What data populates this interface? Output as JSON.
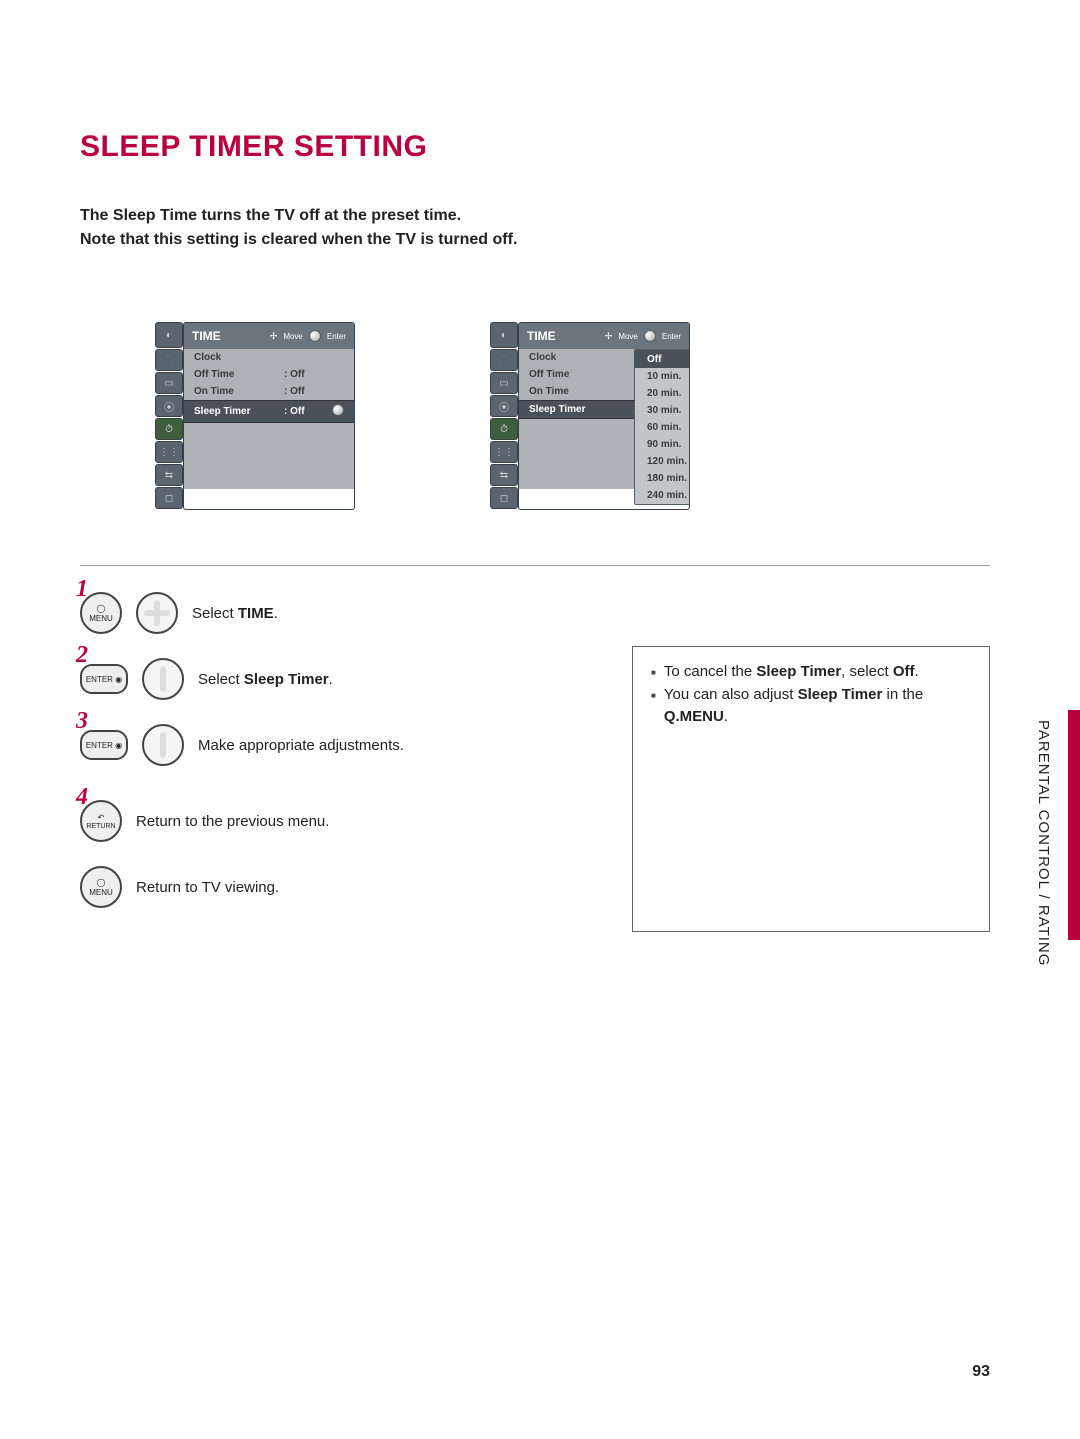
{
  "title": "SLEEP TIMER SETTING",
  "intro1": "The Sleep Time turns the TV off at the preset time.",
  "intro2": "Note that this setting is cleared when the TV is turned off.",
  "menu": {
    "header": "TIME",
    "hint_move": "Move",
    "hint_enter": "Enter",
    "rows": [
      {
        "label": "Clock",
        "val": ""
      },
      {
        "label": "Off Time",
        "val": ": Off"
      },
      {
        "label": "On Time",
        "val": ": Off"
      },
      {
        "label": "Sleep Timer",
        "val": ": Off"
      }
    ],
    "sel_index": 3,
    "popup_sel_index": 0,
    "popup": [
      "Off",
      "10 min.",
      "20 min.",
      "30 min.",
      "60 min.",
      "90 min.",
      "120 min.",
      "180 min.",
      "240 min."
    ]
  },
  "steps": {
    "s1": {
      "num": "1",
      "text_pre": "Select ",
      "text_bold": "TIME",
      "text_post": ".",
      "btn": "MENU"
    },
    "s2": {
      "num": "2",
      "text_pre": "Select ",
      "text_bold": "Sleep Timer",
      "text_post": ".",
      "btn": "ENTER"
    },
    "s3": {
      "num": "3",
      "text": "Make appropriate adjustments.",
      "btn": "ENTER"
    },
    "s4": {
      "num": "4",
      "text": "Return to the previous menu.",
      "btn": "RETURN"
    },
    "s5": {
      "text": "Return to TV viewing.",
      "btn": "MENU"
    }
  },
  "info": {
    "l1_pre": "To cancel the ",
    "l1_b1": "Sleep Timer",
    "l1_mid": ", select ",
    "l1_b2": "Off",
    "l1_post": ".",
    "l2_pre": "You can also adjust ",
    "l2_b1": "Sleep Timer",
    "l2_mid": " in the ",
    "l2_b2": "Q.MENU",
    "l2_post": "."
  },
  "sidetab": "PARENTAL CONTROL / RATING",
  "pagenum": "93"
}
